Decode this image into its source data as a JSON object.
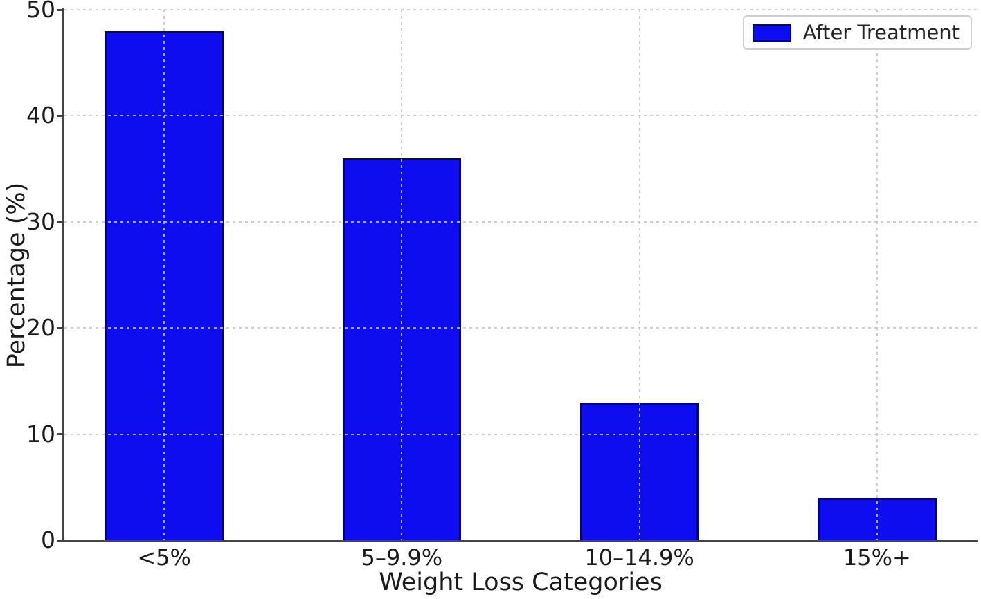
{
  "chart_data": {
    "type": "bar",
    "title": "",
    "xlabel": "Weight Loss Categories",
    "ylabel": "Percentage (%)",
    "categories": [
      "<5%",
      "5–9.9%",
      "10–14.9%",
      "15%+"
    ],
    "series": [
      {
        "name": "After Treatment",
        "values": [
          48,
          36,
          13,
          4
        ]
      }
    ],
    "ylim": [
      0,
      50
    ],
    "yticks": [
      0,
      10,
      20,
      30,
      40,
      50
    ],
    "grid": true,
    "grid_style": "dashed",
    "legend_position": "upper right",
    "bar_width_fraction": 0.5
  },
  "colors": {
    "bar_fill": "#0d0df0",
    "bar_edge": "#00008b",
    "grid": "#c6c6c6",
    "spine": "#454545",
    "text": "#1a1a1a",
    "legend_border": "#cfcfcf",
    "background": "#ffffff"
  }
}
